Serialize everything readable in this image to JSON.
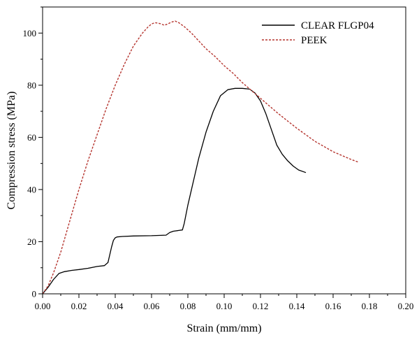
{
  "chart_data": {
    "type": "line",
    "title": "",
    "xlabel": "Strain (mm/mm)",
    "ylabel": "Compression stress (MPa)",
    "xlim": [
      0,
      0.2
    ],
    "ylim": [
      0,
      110
    ],
    "xticks": [
      "0.00",
      "0.02",
      "0.04",
      "0.06",
      "0.08",
      "0.10",
      "0.12",
      "0.14",
      "0.16",
      "0.18",
      "0.20"
    ],
    "yticks": [
      "0",
      "20",
      "40",
      "60",
      "80",
      "100"
    ],
    "grid": false,
    "legend_position": "top-right",
    "series": [
      {
        "name": "CLEAR FLGP04",
        "color": "#000000",
        "dash": "solid",
        "x": [
          0,
          0.003,
          0.006,
          0.009,
          0.012,
          0.016,
          0.02,
          0.025,
          0.03,
          0.034,
          0.036,
          0.037,
          0.038,
          0.039,
          0.04,
          0.041,
          0.044,
          0.05,
          0.06,
          0.068,
          0.07,
          0.072,
          0.075,
          0.077,
          0.078,
          0.08,
          0.083,
          0.086,
          0.09,
          0.094,
          0.098,
          0.102,
          0.106,
          0.11,
          0.114,
          0.117,
          0.12,
          0.123,
          0.126,
          0.129,
          0.132,
          0.135,
          0.138,
          0.141,
          0.145
        ],
        "y": [
          0,
          2.5,
          5.5,
          7.8,
          8.5,
          9,
          9.3,
          9.8,
          10.5,
          10.8,
          12,
          15,
          18,
          20.5,
          21.5,
          21.8,
          22,
          22.2,
          22.3,
          22.5,
          23.5,
          24,
          24.3,
          24.5,
          27,
          34,
          43,
          52,
          62,
          70,
          76,
          78.3,
          78.8,
          78.8,
          78.5,
          77,
          74,
          69,
          63,
          57,
          53.5,
          51,
          49,
          47.5,
          46.5
        ]
      },
      {
        "name": "PEEK",
        "color": "#b5352f",
        "dash": "dashed",
        "x": [
          0,
          0.003,
          0.006,
          0.01,
          0.015,
          0.02,
          0.025,
          0.03,
          0.035,
          0.04,
          0.045,
          0.05,
          0.055,
          0.058,
          0.06,
          0.062,
          0.065,
          0.067,
          0.069,
          0.071,
          0.073,
          0.075,
          0.078,
          0.082,
          0.086,
          0.09,
          0.095,
          0.1,
          0.105,
          0.11,
          0.115,
          0.12,
          0.13,
          0.14,
          0.15,
          0.16,
          0.17,
          0.174
        ],
        "y": [
          0,
          3,
          8,
          16,
          28,
          40,
          51,
          61,
          71,
          80,
          88,
          95,
          100,
          102.3,
          103.5,
          104,
          103.6,
          103,
          103.5,
          104.2,
          104.6,
          104,
          102.5,
          100,
          97,
          94,
          91,
          87.5,
          84.5,
          81,
          78,
          75,
          69,
          63.5,
          58.5,
          54.5,
          51.5,
          50.5
        ]
      }
    ]
  }
}
